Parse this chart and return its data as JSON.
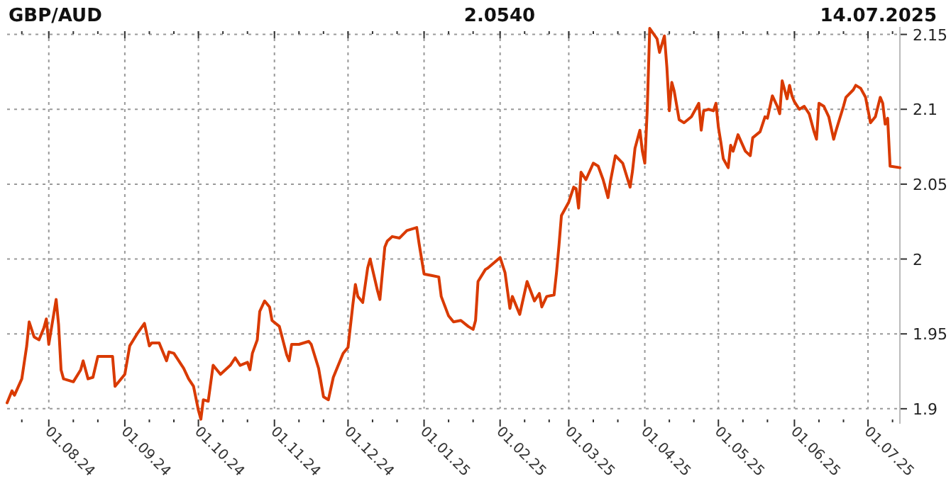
{
  "chart_data": {
    "type": "line",
    "title": "GBP/AUD",
    "annotations": [
      "2.0540",
      "14.07.2025"
    ],
    "x": [
      "2024-07-15",
      "2024-07-17",
      "2024-07-18",
      "2024-07-21",
      "2024-07-23",
      "2024-07-24",
      "2024-07-26",
      "2024-07-28",
      "2024-07-30",
      "2024-07-31",
      "2024-08-01",
      "2024-08-03",
      "2024-08-04",
      "2024-08-05",
      "2024-08-06",
      "2024-08-07",
      "2024-08-11",
      "2024-08-14",
      "2024-08-15",
      "2024-08-17",
      "2024-08-19",
      "2024-08-21",
      "2024-08-27",
      "2024-08-28",
      "2024-09-01",
      "2024-09-03",
      "2024-09-06",
      "2024-09-09",
      "2024-09-11",
      "2024-09-12",
      "2024-09-15",
      "2024-09-18",
      "2024-09-19",
      "2024-09-21",
      "2024-09-25",
      "2024-09-27",
      "2024-09-29",
      "2024-10-01",
      "2024-10-02",
      "2024-10-03",
      "2024-10-05",
      "2024-10-07",
      "2024-10-10",
      "2024-10-14",
      "2024-10-16",
      "2024-10-18",
      "2024-10-21",
      "2024-10-22",
      "2024-10-23",
      "2024-10-25",
      "2024-10-26",
      "2024-10-28",
      "2024-10-30",
      "2024-10-31",
      "2024-11-03",
      "2024-11-06",
      "2024-11-07",
      "2024-11-08",
      "2024-11-11",
      "2024-11-15",
      "2024-11-16",
      "2024-11-19",
      "2024-11-21",
      "2024-11-23",
      "2024-11-25",
      "2024-11-29",
      "2024-12-01",
      "2024-12-03",
      "2024-12-04",
      "2024-12-05",
      "2024-12-07",
      "2024-12-09",
      "2024-12-10",
      "2024-12-13",
      "2024-12-14",
      "2024-12-16",
      "2024-12-17",
      "2024-12-19",
      "2024-12-22",
      "2024-12-25",
      "2024-12-29",
      "2024-12-30",
      "2025-01-01",
      "2025-01-04",
      "2025-01-07",
      "2025-01-08",
      "2025-01-11",
      "2025-01-13",
      "2025-01-16",
      "2025-01-19",
      "2025-01-21",
      "2025-01-22",
      "2025-01-23",
      "2025-01-26",
      "2025-01-27",
      "2025-02-01",
      "2025-02-03",
      "2025-02-05",
      "2025-02-06",
      "2025-02-09",
      "2025-02-12",
      "2025-02-15",
      "2025-02-17",
      "2025-02-18",
      "2025-02-20",
      "2025-02-23",
      "2025-02-24",
      "2025-02-25",
      "2025-02-26",
      "2025-03-01",
      "2025-03-03",
      "2025-03-04",
      "2025-03-05",
      "2025-03-06",
      "2025-03-08",
      "2025-03-11",
      "2025-03-13",
      "2025-03-15",
      "2025-03-17",
      "2025-03-18",
      "2025-03-20",
      "2025-03-23",
      "2025-03-26",
      "2025-03-27",
      "2025-03-28",
      "2025-03-30",
      "2025-03-31",
      "2025-04-01",
      "2025-04-02",
      "2025-04-03",
      "2025-04-06",
      "2025-04-07",
      "2025-04-09",
      "2025-04-10",
      "2025-04-11",
      "2025-04-12",
      "2025-04-13",
      "2025-04-15",
      "2025-04-17",
      "2025-04-20",
      "2025-04-23",
      "2025-04-24",
      "2025-04-25",
      "2025-04-27",
      "2025-04-29",
      "2025-04-30",
      "2025-05-01",
      "2025-05-02",
      "2025-05-03",
      "2025-05-05",
      "2025-05-06",
      "2025-05-07",
      "2025-05-09",
      "2025-05-12",
      "2025-05-14",
      "2025-05-15",
      "2025-05-18",
      "2025-05-20",
      "2025-05-21",
      "2025-05-23",
      "2025-05-25",
      "2025-05-26",
      "2025-05-27",
      "2025-05-29",
      "2025-05-30",
      "2025-05-31",
      "2025-06-01",
      "2025-06-03",
      "2025-06-05",
      "2025-06-07",
      "2025-06-09",
      "2025-06-10",
      "2025-06-11",
      "2025-06-13",
      "2025-06-15",
      "2025-06-17",
      "2025-06-18",
      "2025-06-21",
      "2025-06-22",
      "2025-06-25",
      "2025-06-26",
      "2025-06-28",
      "2025-06-30",
      "2025-07-02",
      "2025-07-04",
      "2025-07-06",
      "2025-07-07",
      "2025-07-08",
      "2025-07-09",
      "2025-07-10",
      "2025-07-14"
    ],
    "series": [
      {
        "color": "#d93a00",
        "values": [
          1.904,
          1.912,
          1.909,
          1.92,
          1.942,
          1.958,
          1.948,
          1.946,
          1.954,
          1.96,
          1.943,
          1.963,
          1.973,
          1.956,
          1.926,
          1.92,
          1.918,
          1.926,
          1.932,
          1.92,
          1.921,
          1.935,
          1.935,
          1.915,
          1.923,
          1.942,
          1.95,
          1.957,
          1.942,
          1.944,
          1.944,
          1.932,
          1.938,
          1.937,
          1.927,
          1.92,
          1.915,
          1.899,
          1.893,
          1.906,
          1.905,
          1.929,
          1.923,
          1.929,
          1.934,
          1.929,
          1.931,
          1.926,
          1.937,
          1.946,
          1.965,
          1.972,
          1.968,
          1.959,
          1.955,
          1.936,
          1.932,
          1.943,
          1.943,
          1.945,
          1.943,
          1.927,
          1.908,
          1.906,
          1.921,
          1.937,
          1.941,
          1.97,
          1.983,
          1.975,
          1.971,
          1.994,
          2.0,
          1.979,
          1.973,
          2.008,
          2.012,
          2.015,
          2.014,
          2.019,
          2.021,
          2.01,
          1.99,
          1.989,
          1.988,
          1.975,
          1.962,
          1.958,
          1.959,
          1.955,
          1.953,
          1.959,
          1.985,
          1.993,
          1.994,
          2.001,
          1.991,
          1.967,
          1.975,
          1.963,
          1.985,
          1.972,
          1.977,
          1.968,
          1.975,
          1.976,
          1.991,
          2.009,
          2.029,
          2.038,
          2.048,
          2.047,
          2.034,
          2.058,
          2.053,
          2.064,
          2.062,
          2.053,
          2.041,
          2.052,
          2.069,
          2.064,
          2.048,
          2.059,
          2.074,
          2.086,
          2.072,
          2.064,
          2.1,
          2.154,
          2.147,
          2.138,
          2.149,
          2.128,
          2.099,
          2.118,
          2.112,
          2.093,
          2.091,
          2.095,
          2.104,
          2.086,
          2.099,
          2.1,
          2.099,
          2.104,
          2.088,
          2.078,
          2.067,
          2.061,
          2.076,
          2.072,
          2.083,
          2.072,
          2.069,
          2.081,
          2.085,
          2.095,
          2.094,
          2.109,
          2.102,
          2.097,
          2.119,
          2.107,
          2.116,
          2.109,
          2.105,
          2.1,
          2.102,
          2.097,
          2.085,
          2.08,
          2.104,
          2.102,
          2.095,
          2.08,
          2.086,
          2.102,
          2.108,
          2.113,
          2.116,
          2.114,
          2.108,
          2.091,
          2.095,
          2.108,
          2.104,
          2.09,
          2.094,
          2.062,
          2.061
        ]
      }
    ],
    "xlim": [
      "2024-07-15",
      "2025-07-14"
    ],
    "xticks": [
      {
        "value": "2024-07-21",
        "label": null
      },
      {
        "value": "2024-08-01",
        "label": "01.08.24"
      },
      {
        "value": "2024-08-11",
        "label": null
      },
      {
        "value": "2024-08-21",
        "label": null
      },
      {
        "value": "2024-09-01",
        "label": "01.09.24"
      },
      {
        "value": "2024-09-11",
        "label": null
      },
      {
        "value": "2024-09-21",
        "label": null
      },
      {
        "value": "2024-10-01",
        "label": "01.10.24"
      },
      {
        "value": "2024-10-11",
        "label": null
      },
      {
        "value": "2024-10-21",
        "label": null
      },
      {
        "value": "2024-11-01",
        "label": "01.11.24"
      },
      {
        "value": "2024-11-11",
        "label": null
      },
      {
        "value": "2024-11-21",
        "label": null
      },
      {
        "value": "2024-12-01",
        "label": "01.12.24"
      },
      {
        "value": "2024-12-11",
        "label": null
      },
      {
        "value": "2024-12-21",
        "label": null
      },
      {
        "value": "2025-01-01",
        "label": "01.01.25"
      },
      {
        "value": "2025-01-11",
        "label": null
      },
      {
        "value": "2025-01-21",
        "label": null
      },
      {
        "value": "2025-02-01",
        "label": "01.02.25"
      },
      {
        "value": "2025-02-11",
        "label": null
      },
      {
        "value": "2025-02-21",
        "label": null
      },
      {
        "value": "2025-03-01",
        "label": "01.03.25"
      },
      {
        "value": "2025-03-11",
        "label": null
      },
      {
        "value": "2025-03-21",
        "label": null
      },
      {
        "value": "2025-04-01",
        "label": "01.04.25"
      },
      {
        "value": "2025-04-11",
        "label": null
      },
      {
        "value": "2025-04-21",
        "label": null
      },
      {
        "value": "2025-05-01",
        "label": "01.05.25"
      },
      {
        "value": "2025-05-11",
        "label": null
      },
      {
        "value": "2025-05-21",
        "label": null
      },
      {
        "value": "2025-06-01",
        "label": "01.06.25"
      },
      {
        "value": "2025-06-11",
        "label": null
      },
      {
        "value": "2025-06-21",
        "label": null
      },
      {
        "value": "2025-07-01",
        "label": "01.07.25"
      },
      {
        "value": "2025-07-11",
        "label": null
      }
    ],
    "ylim": [
      1.89,
      2.155
    ],
    "yticks": [
      1.9,
      1.95,
      2,
      2.05,
      2.1,
      2.15
    ],
    "grid": true,
    "marker": "none",
    "line_style": "solid"
  }
}
